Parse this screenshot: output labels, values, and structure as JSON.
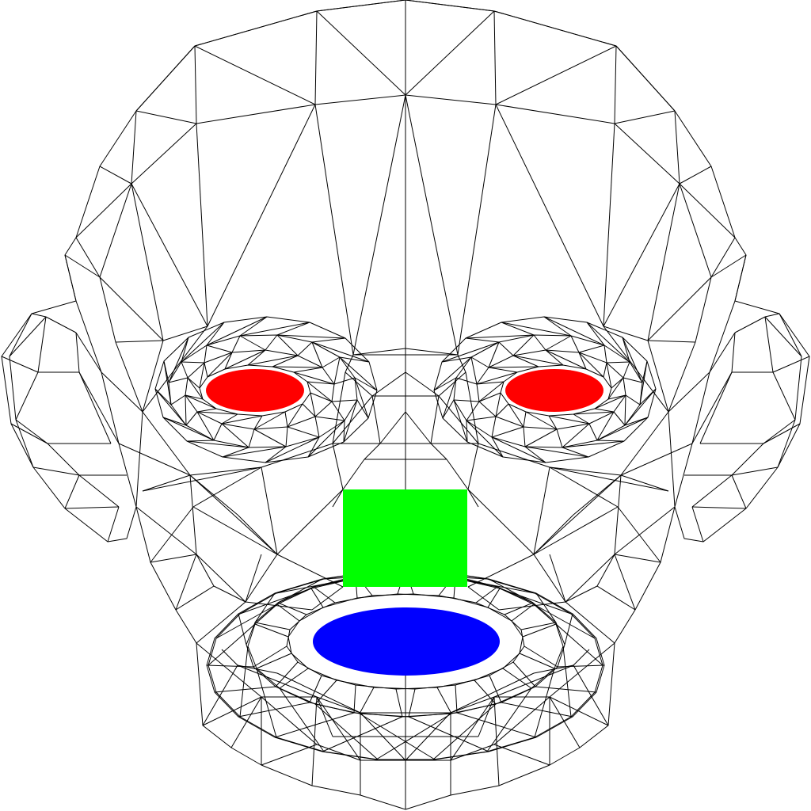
{
  "colors": {
    "background": "#ffffff",
    "wireframe": "#000000",
    "eyes": "#ff0000",
    "nose": "#00ff00",
    "mouth": "#0000ff"
  },
  "shapes": {
    "wireframe": "wireframe-head",
    "left_eye": "ellipse",
    "right_eye": "ellipse",
    "nose": "square",
    "mouth": "ellipse"
  }
}
